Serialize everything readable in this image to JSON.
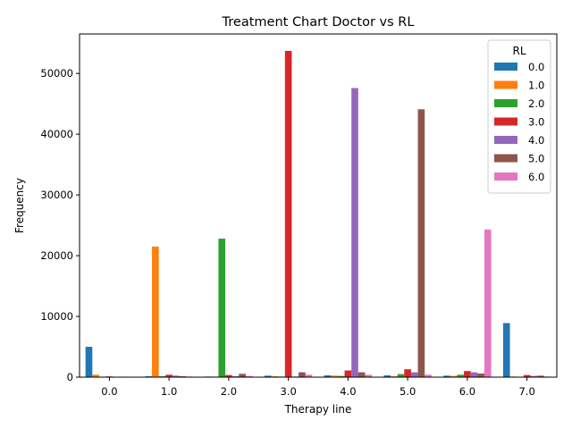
{
  "chart_data": {
    "type": "bar",
    "title": "Treatment Chart Doctor vs RL",
    "xlabel": "Therapy line",
    "ylabel": "Frequency",
    "categories": [
      "0.0",
      "1.0",
      "2.0",
      "3.0",
      "4.0",
      "5.0",
      "6.0",
      "7.0"
    ],
    "ylim": [
      0,
      56500
    ],
    "yticks": [
      0,
      10000,
      20000,
      30000,
      40000,
      50000
    ],
    "grid": false,
    "legend": {
      "title": "RL",
      "placement": "top-right"
    },
    "series": [
      {
        "name": "0.0",
        "color": "#1f77b4",
        "values": [
          5000,
          150,
          100,
          250,
          300,
          300,
          250,
          8900
        ]
      },
      {
        "name": "1.0",
        "color": "#ff7f0e",
        "values": [
          400,
          21500,
          100,
          150,
          250,
          150,
          200,
          100
        ]
      },
      {
        "name": "2.0",
        "color": "#2ca02c",
        "values": [
          80,
          150,
          22800,
          100,
          200,
          500,
          400,
          50
        ]
      },
      {
        "name": "3.0",
        "color": "#d62728",
        "values": [
          120,
          400,
          350,
          53700,
          1100,
          1300,
          1000,
          350
        ]
      },
      {
        "name": "4.0",
        "color": "#9467bd",
        "values": [
          60,
          250,
          150,
          100,
          47600,
          800,
          800,
          200
        ]
      },
      {
        "name": "5.0",
        "color": "#8c564b",
        "values": [
          80,
          150,
          550,
          800,
          800,
          44100,
          600,
          250
        ]
      },
      {
        "name": "6.0",
        "color": "#e377c2",
        "values": [
          50,
          100,
          200,
          400,
          400,
          400,
          24300,
          100
        ]
      }
    ]
  }
}
